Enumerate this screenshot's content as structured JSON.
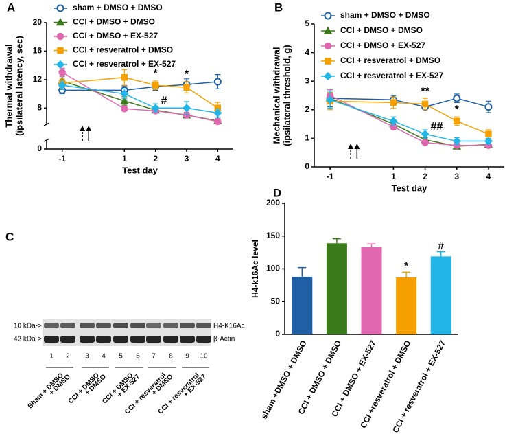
{
  "chart_data": [
    {
      "type": "line",
      "panel": "A",
      "xlabel": "Test day",
      "ylabel": [
        "Thermal withdrawal",
        "(ipsilateral latency, sec)"
      ],
      "x": [
        -1,
        1,
        2,
        3,
        4
      ],
      "xlim": [
        -1.5,
        4.5
      ],
      "xticks": [
        -1,
        1,
        2,
        3,
        4
      ],
      "ylim": [
        0,
        20
      ],
      "ybreak": [
        1,
        6
      ],
      "yticks": [
        0,
        8,
        12,
        16,
        20
      ],
      "series": [
        {
          "name": "sham + DMSO + DMSO",
          "color": "#1f5fa6",
          "marker": "circle-open",
          "values": [
            10.5,
            10.5,
            11,
            11.3,
            11.7
          ],
          "errors": [
            0.5,
            0.6,
            0.5,
            0.8,
            1.0
          ]
        },
        {
          "name": "CCI + DMSO + DMSO",
          "color": "#3b7a1a",
          "marker": "triangle",
          "values": [
            11.8,
            9,
            7.7,
            7,
            6.2
          ],
          "errors": [
            0.7,
            0.6,
            0.4,
            0.4,
            0.3
          ]
        },
        {
          "name": "CCI + DMSO + EX-527",
          "color": "#e066b0",
          "marker": "circle",
          "values": [
            13,
            7.9,
            7.6,
            7,
            6.1
          ],
          "errors": [
            0.6,
            0.3,
            0.3,
            0.3,
            0.3
          ]
        },
        {
          "name": "CCI + resveratrol + DMSO",
          "color": "#f5a000",
          "marker": "square",
          "values": [
            11.5,
            12.3,
            11.2,
            10.9,
            8
          ],
          "errors": [
            0.6,
            1.1,
            0.6,
            0.8,
            0.8
          ]
        },
        {
          "name": "CCI + resveratrol + EX-527",
          "color": "#22b5e8",
          "marker": "diamond",
          "values": [
            11.2,
            10,
            8,
            8,
            7.3
          ],
          "errors": [
            0.6,
            0.7,
            0.6,
            0.9,
            0.6
          ]
        }
      ],
      "annotations": [
        {
          "text": "*",
          "x": 2,
          "series": 3
        },
        {
          "text": "*",
          "x": 3,
          "series": 3
        },
        {
          "text": "#",
          "x": 2,
          "series": 4
        }
      ]
    },
    {
      "type": "line",
      "panel": "B",
      "xlabel": "Test day",
      "ylabel": [
        "Mechanical withdrawal",
        "(ipsilateral threshold, g)"
      ],
      "x": [
        -1,
        1,
        2,
        3,
        4
      ],
      "xlim": [
        -1.5,
        4.5
      ],
      "xticks": [
        -1,
        1,
        2,
        3,
        4
      ],
      "ylim": [
        0,
        5
      ],
      "yticks": [
        0,
        1,
        2,
        3,
        4,
        5
      ],
      "series": [
        {
          "name": "sham + DMSO + DMSO",
          "color": "#1f5fa6",
          "marker": "circle-open",
          "values": [
            2.4,
            2.35,
            2.1,
            2.4,
            2.1
          ],
          "errors": [
            0.3,
            0.15,
            0.1,
            0.15,
            0.2
          ]
        },
        {
          "name": "CCI + DMSO + DMSO",
          "color": "#3b7a1a",
          "marker": "triangle",
          "values": [
            2.4,
            1.5,
            0.95,
            0.72,
            0.78
          ],
          "errors": [
            0.2,
            0.1,
            0.08,
            0.08,
            0.08
          ]
        },
        {
          "name": "CCI + DMSO + EX-527",
          "color": "#e066b0",
          "marker": "circle",
          "values": [
            2.5,
            1.4,
            0.85,
            0.75,
            0.75
          ],
          "errors": [
            0.2,
            0.08,
            0.06,
            0.06,
            0.06
          ]
        },
        {
          "name": "CCI + resveratrol + DMSO",
          "color": "#f5a000",
          "marker": "square",
          "values": [
            2.3,
            2.25,
            2.2,
            1.6,
            1.15
          ],
          "errors": [
            0.3,
            0.2,
            0.2,
            0.15,
            0.15
          ]
        },
        {
          "name": "CCI + resveratrol + EX-527",
          "color": "#22b5e8",
          "marker": "diamond",
          "values": [
            2.35,
            1.6,
            1.15,
            0.9,
            0.9
          ],
          "errors": [
            0.3,
            0.15,
            0.15,
            0.12,
            0.1
          ]
        }
      ],
      "annotations": [
        {
          "text": "**",
          "x": 2,
          "series": 3
        },
        {
          "text": "*",
          "x": 3,
          "series": 3
        },
        {
          "text": "##",
          "x": 2,
          "series": 4
        }
      ]
    },
    {
      "type": "bar",
      "panel": "D",
      "ylabel": "H4-k16Ac level",
      "categories": [
        "sham +DMSO + DMSO",
        "CCI + DMSO + DMSO",
        "CCI + DMSO + EX-527",
        "CCI +resveratrol + DMSO",
        "CCI + resveratrol + EX-527"
      ],
      "values": [
        88,
        139,
        133,
        87,
        119
      ],
      "errors": [
        14,
        7,
        5,
        8,
        7
      ],
      "colors": [
        "#1f5fa6",
        "#3b7a1a",
        "#e066b0",
        "#f5a000",
        "#22b5e8"
      ],
      "ylim": [
        0,
        200
      ],
      "yticks": [
        0,
        50,
        100,
        150,
        200
      ],
      "annotations": [
        {
          "text": "*",
          "index": 3
        },
        {
          "text": "#",
          "index": 4
        }
      ]
    }
  ],
  "blot": {
    "panel": "C",
    "markers": [
      "10 kDa->",
      "42 kDa->"
    ],
    "bands": [
      "H4-K16Ac",
      "β-Actin"
    ],
    "lanes": [
      "1",
      "2",
      "3",
      "4",
      "5",
      "6",
      "7",
      "8",
      "9",
      "10"
    ],
    "groups": [
      [
        "Sham + DMSO",
        "+ DMSO"
      ],
      [
        "CCI + DMSO",
        "+ DMSO"
      ],
      [
        "CCI + DMSO",
        "+ EX-527"
      ],
      [
        "CCI + resveratrol",
        "+ DMSO"
      ],
      [
        "CCI + resveratrol",
        "+ EX-527"
      ]
    ]
  }
}
